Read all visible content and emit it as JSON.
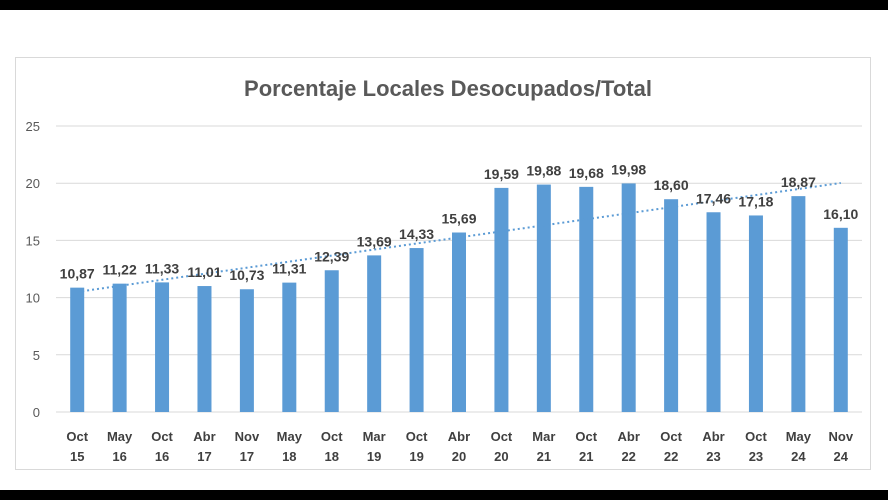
{
  "chart_data": {
    "type": "bar",
    "title": "Porcentaje Locales Desocupados/Total",
    "categories": [
      [
        "Oct",
        "15"
      ],
      [
        "May",
        "16"
      ],
      [
        "Oct",
        "16"
      ],
      [
        "Abr",
        "17"
      ],
      [
        "Nov",
        "17"
      ],
      [
        "May",
        "18"
      ],
      [
        "Oct",
        "18"
      ],
      [
        "Mar",
        "19"
      ],
      [
        "Oct",
        "19"
      ],
      [
        "Abr",
        "20"
      ],
      [
        "Oct",
        "20"
      ],
      [
        "Mar",
        "21"
      ],
      [
        "Oct",
        "21"
      ],
      [
        "Abr",
        "22"
      ],
      [
        "Oct",
        "22"
      ],
      [
        "Abr",
        "23"
      ],
      [
        "Oct",
        "23"
      ],
      [
        "May",
        "24"
      ],
      [
        "Nov",
        "24"
      ]
    ],
    "values": [
      10.87,
      11.22,
      11.33,
      11.01,
      10.73,
      11.31,
      12.39,
      13.69,
      14.33,
      15.69,
      19.59,
      19.88,
      19.68,
      19.98,
      18.6,
      17.46,
      17.18,
      18.87,
      16.1
    ],
    "labels": [
      "10,87",
      "11,22",
      "11,33",
      "11,01",
      "10,73",
      "11,31",
      "12,39",
      "13,69",
      "14,33",
      "15,69",
      "19,59",
      "19,88",
      "19,68",
      "19,98",
      "18,60",
      "17,46",
      "17,18",
      "18,87",
      "16,10"
    ],
    "yticks": [
      "0",
      "5",
      "10",
      "15",
      "20",
      "25"
    ],
    "ylim": [
      0,
      25
    ],
    "trendline": "linear-dotted",
    "grid": true,
    "colors": {
      "bar": "#5b9bd5",
      "trend": "#5b9bd5",
      "grid": "#d9d9d9"
    }
  }
}
